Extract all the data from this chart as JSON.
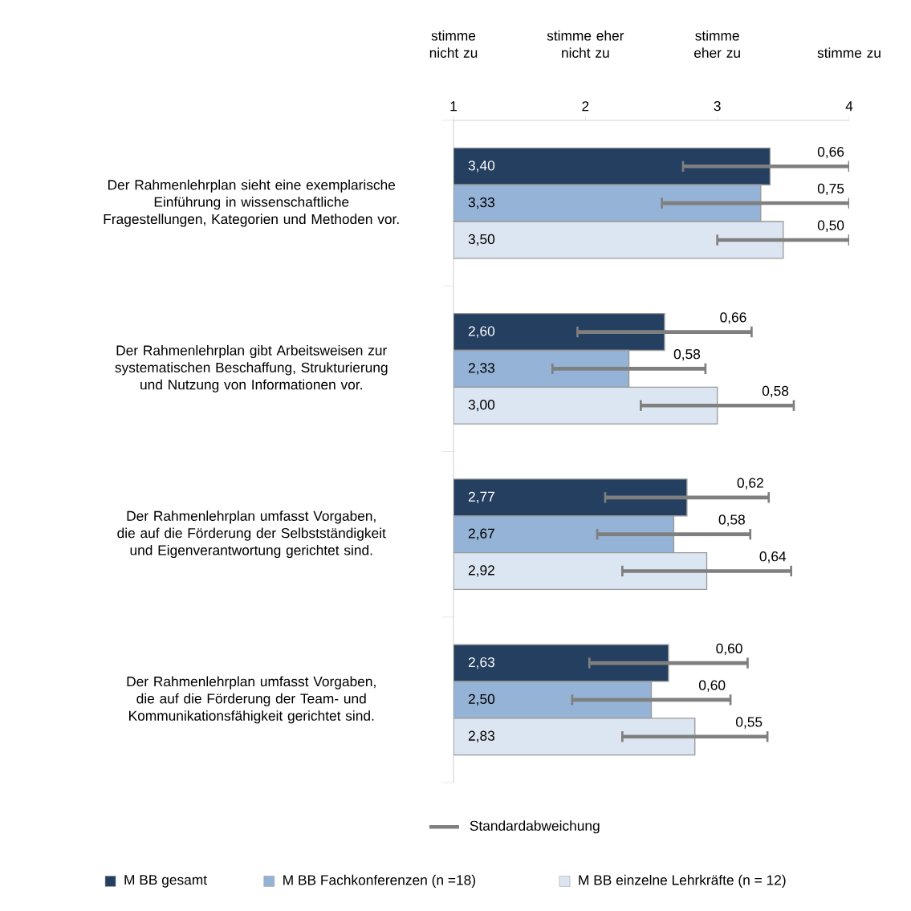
{
  "chart_data": {
    "type": "bar",
    "orientation": "horizontal",
    "categories": [
      "Der Rahmenlehrplan sieht eine exemplarische Einführung in wissenschaftliche Fragestellungen, Kategorien und Methoden vor.",
      "Der Rahmenlehrplan gibt Arbeitsweisen zur systematischen Beschaffung, Strukturierung und Nutzung von Informationen vor.",
      "Der Rahmenlehrplan umfasst Vorgaben, die auf die Förderung der Selbstständigkeit und Eigenverantwortung gerichtet sind.",
      "Der Rahmenlehrplan umfasst Vorgaben, die auf die Förderung der Team- und Kommunikationsfähigkeit gerichtet sind."
    ],
    "series": [
      {
        "name": "M BB gesamt",
        "color": "#243f60",
        "values": [
          3.4,
          2.6,
          2.77,
          2.63
        ],
        "value_labels": [
          "3,40",
          "2,60",
          "2,77",
          "2,63"
        ],
        "errors": [
          [
            2.74,
            4.0
          ],
          0.66,
          0.62,
          0.6
        ]
      },
      {
        "name": "M BB Fachkonferenzen (n =18)",
        "color": "#95b3d7",
        "values": [
          3.33,
          2.33,
          2.67,
          2.5
        ],
        "value_labels": [
          "3,33",
          "2,33",
          "2,67",
          "2,50"
        ],
        "errors": [
          [
            2.58,
            4.0
          ],
          0.58,
          0.58,
          0.6
        ]
      },
      {
        "name": "M BB einzelne Lehrkräfte (n = 12)",
        "color": "#dce6f2",
        "values": [
          3.5,
          3.0,
          2.92,
          2.83
        ],
        "value_labels": [
          "3,50",
          "3,00",
          "2,92",
          "2,83"
        ],
        "errors": [
          0.5,
          0.58,
          0.64,
          0.55
        ]
      }
    ],
    "xlim": [
      1,
      4
    ],
    "xticks": [
      1,
      2,
      3,
      4
    ],
    "annotations": [
      "stimme nicht zu",
      "stimme eher nicht zu",
      "stimme eher zu",
      "stimme zu",
      "0,66",
      "0,75",
      "0,50",
      "0,66",
      "0,58",
      "0,58",
      "0,62",
      "0,58",
      "0,64",
      "0,60",
      "0,60",
      "0,55",
      "Standardabweichung"
    ],
    "legend": "bottom"
  }
}
